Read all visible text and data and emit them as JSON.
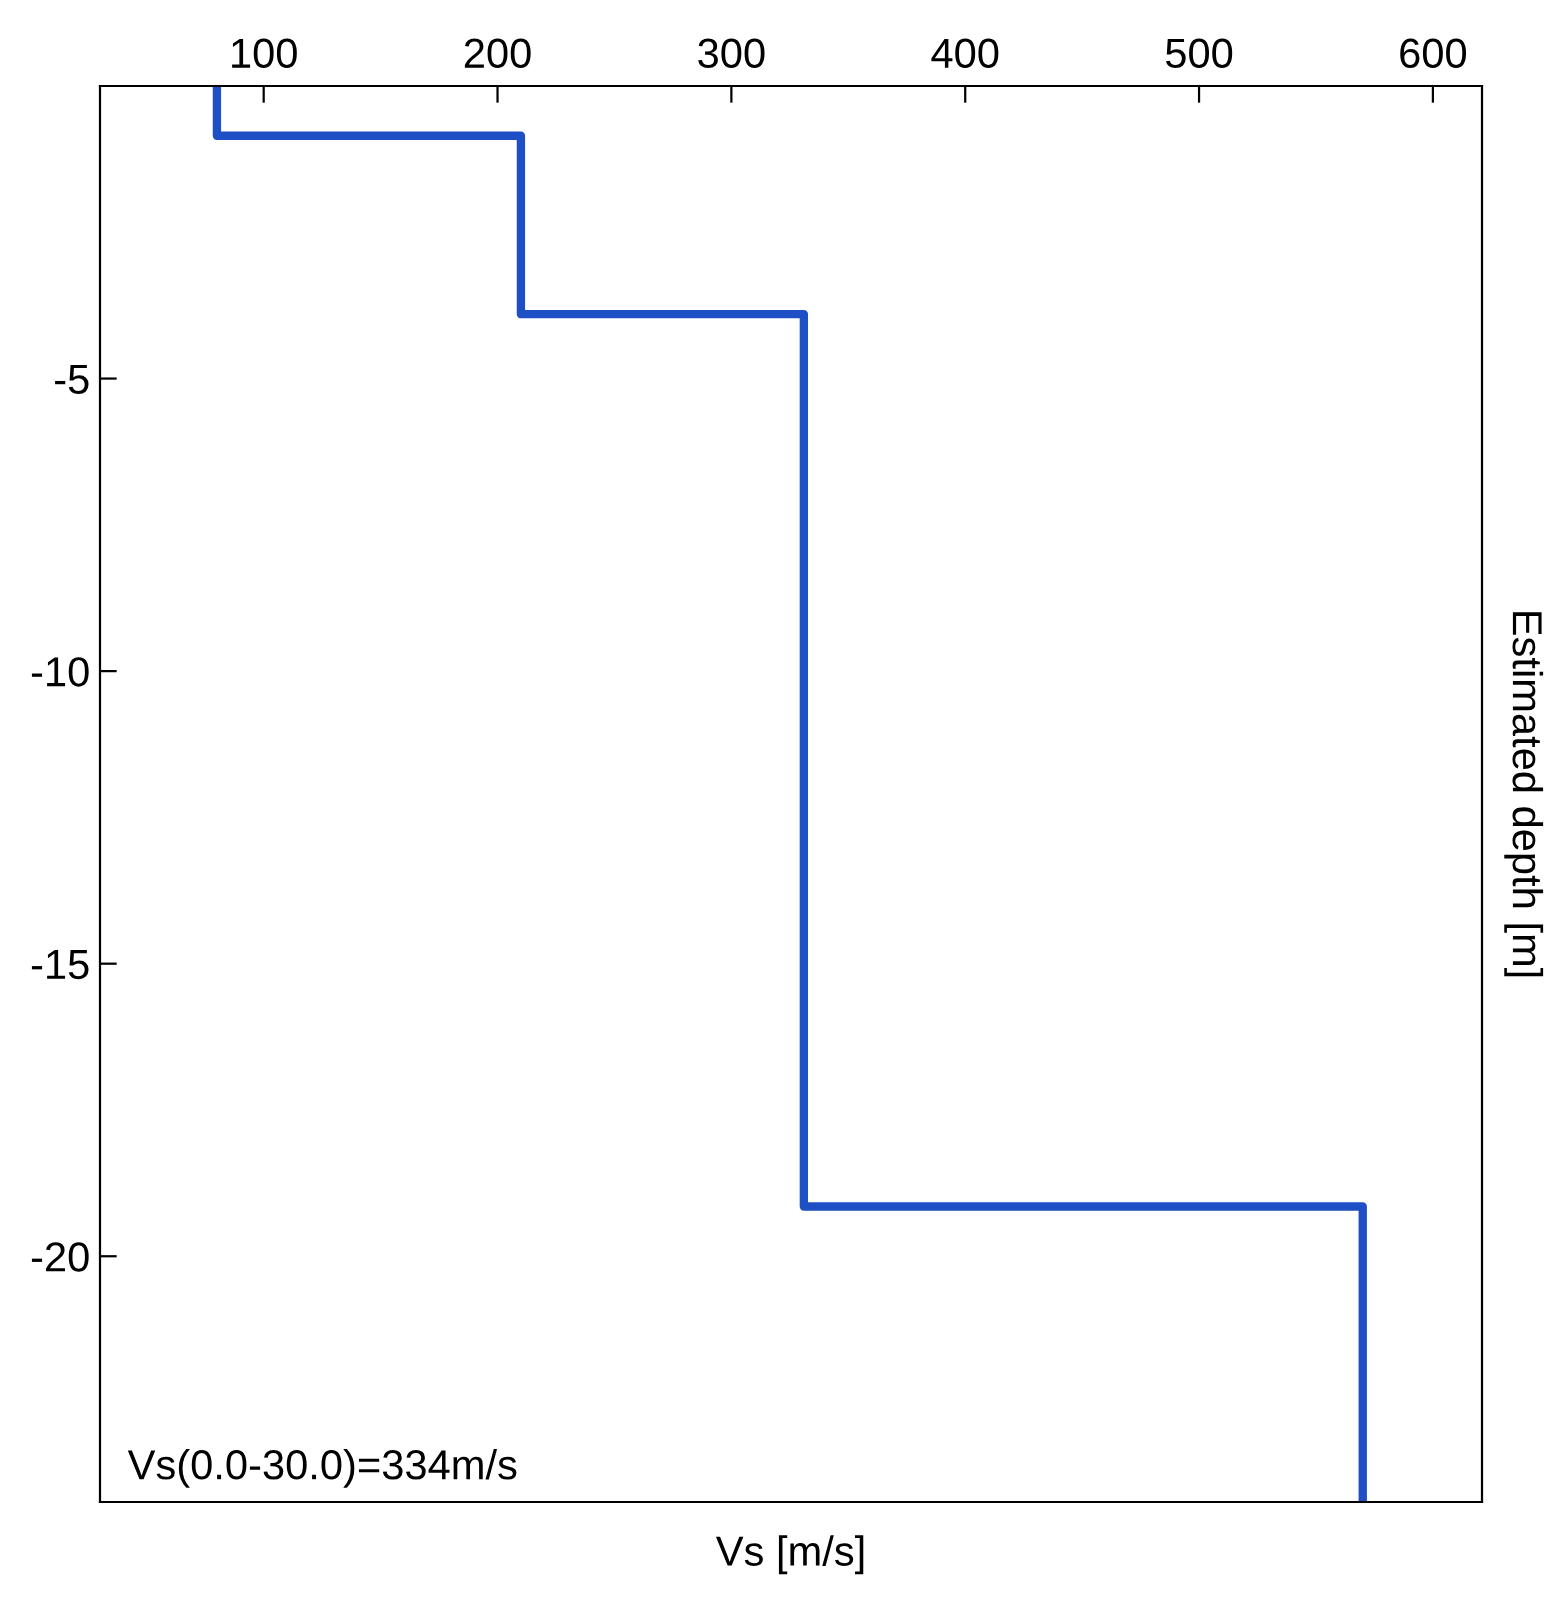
{
  "chart_data": {
    "type": "line",
    "xlabel": "Vs [m/s]",
    "ylabel": "Estimated depth [m]",
    "series": [
      {
        "color": "#1f4fc4",
        "x": [
          80,
          80,
          210,
          210,
          331,
          331,
          570,
          570
        ],
        "values": [
          0,
          -0.85,
          -0.85,
          -3.9,
          -3.9,
          -19.15,
          -19.15,
          -24.2
        ]
      }
    ],
    "xlim": [
      30,
      621
    ],
    "xticks": [
      100,
      200,
      300,
      400,
      500,
      600
    ],
    "ylim": [
      -24.2,
      0
    ],
    "yticks": [
      -5,
      -10,
      -15,
      -20
    ],
    "annotations": [
      "Vs(0.0-30.0)=334m/s"
    ],
    "grid": false,
    "legend": false,
    "marker": "none",
    "line_style": "solid"
  }
}
